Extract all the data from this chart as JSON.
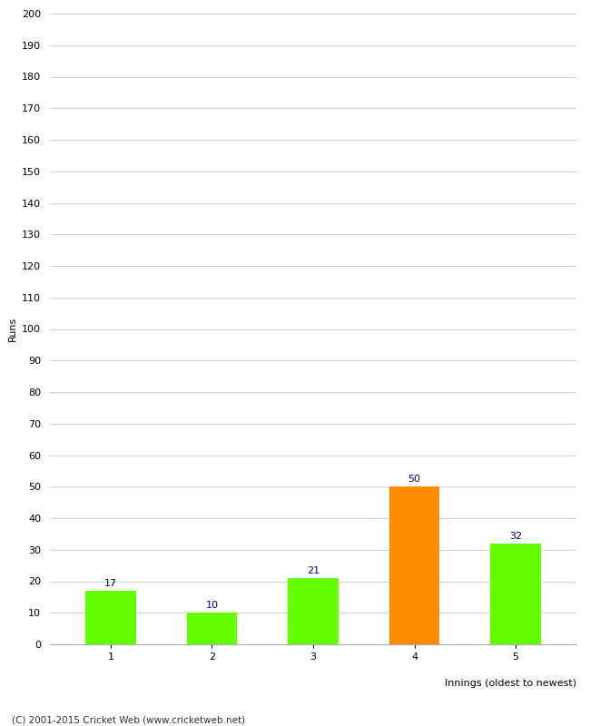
{
  "categories": [
    "1",
    "2",
    "3",
    "4",
    "5"
  ],
  "values": [
    17,
    10,
    21,
    50,
    32
  ],
  "bar_colors": [
    "#66ff00",
    "#66ff00",
    "#66ff00",
    "#ff8c00",
    "#66ff00"
  ],
  "xlabel": "Innings (oldest to newest)",
  "ylabel": "Runs",
  "ylim": [
    0,
    200
  ],
  "yticks": [
    0,
    10,
    20,
    30,
    40,
    50,
    60,
    70,
    80,
    90,
    100,
    110,
    120,
    130,
    140,
    150,
    160,
    170,
    180,
    190,
    200
  ],
  "label_color": "#000080",
  "label_fontsize": 8,
  "axis_label_fontsize": 8,
  "tick_fontsize": 8,
  "footer": "(C) 2001-2015 Cricket Web (www.cricketweb.net)",
  "footer_fontsize": 7.5,
  "background_color": "#ffffff",
  "grid_color": "#d0d0d0"
}
